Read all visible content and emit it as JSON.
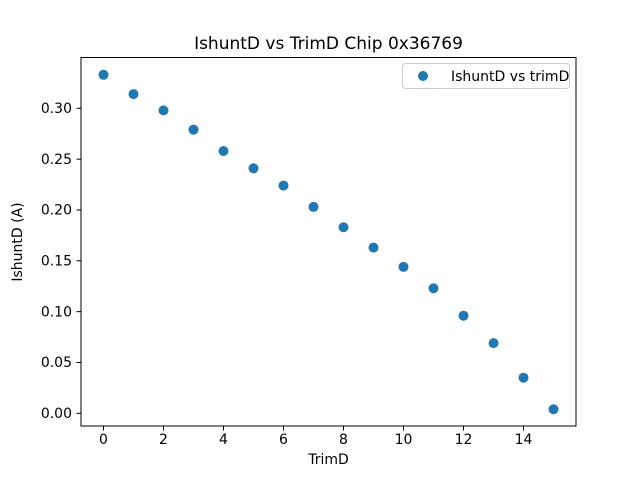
{
  "figure": {
    "background": "#ffffff"
  },
  "chart_data": {
    "type": "scatter",
    "title": "IshuntD vs TrimD Chip 0x36769",
    "xlabel": "TrimD",
    "ylabel": "IshuntD (A)",
    "x": [
      0,
      1,
      2,
      3,
      4,
      5,
      6,
      7,
      8,
      9,
      10,
      11,
      12,
      13,
      14,
      15
    ],
    "series": [
      {
        "name": "IshuntD vs trimD",
        "values": [
          0.333,
          0.314,
          0.298,
          0.279,
          0.258,
          0.241,
          0.224,
          0.203,
          0.183,
          0.163,
          0.144,
          0.123,
          0.096,
          0.069,
          0.035,
          0.004
        ]
      }
    ],
    "xlim": [
      -0.75,
      15.75
    ],
    "ylim": [
      -0.0125,
      0.35
    ],
    "xticks": [
      0,
      2,
      4,
      6,
      8,
      10,
      12,
      14
    ],
    "xtick_labels": [
      "0",
      "2",
      "4",
      "6",
      "8",
      "10",
      "12",
      "14"
    ],
    "yticks": [
      0.0,
      0.05,
      0.1,
      0.15,
      0.2,
      0.25,
      0.3
    ],
    "ytick_labels": [
      "0.00",
      "0.05",
      "0.10",
      "0.15",
      "0.20",
      "0.25",
      "0.30"
    ],
    "grid": false,
    "legend": {
      "position": "upper right",
      "entries": [
        "IshuntD vs trimD"
      ]
    },
    "colors": {
      "marker": "#1f77b4",
      "spine": "#000000",
      "legend_border": "#cccccc",
      "legend_background": "#ffffff"
    }
  }
}
